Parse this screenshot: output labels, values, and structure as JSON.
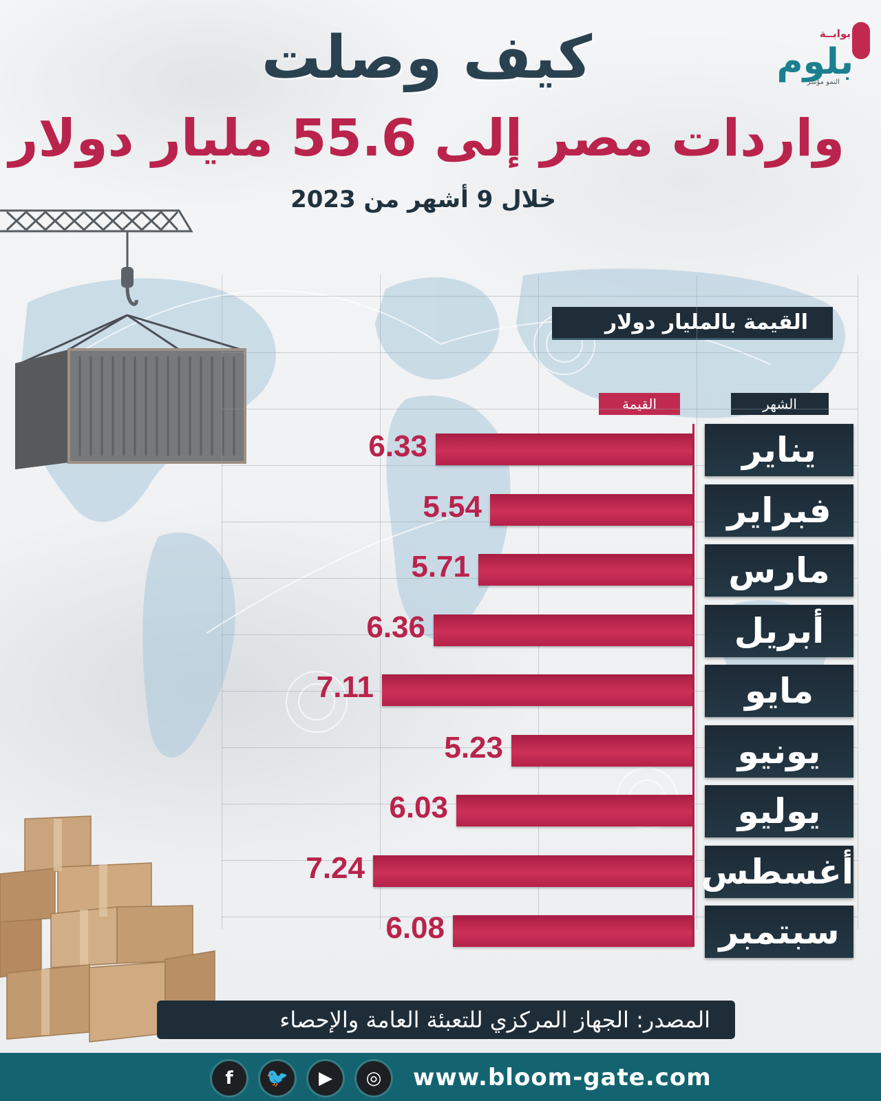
{
  "header": {
    "title_line1": "كيف وصلت",
    "title_line2": "واردات مصر إلى 55.6 مليار دولار",
    "subtitle": "خلال 9 أشهر  من 2023"
  },
  "logo": {
    "top": "بوابــة",
    "main": "بلوم",
    "sub": "النمو مؤشر"
  },
  "chart_data": {
    "type": "bar",
    "orientation": "horizontal",
    "unit_label": "القيمة بالمليار دولار",
    "column_headers": {
      "month": "الشهر",
      "value": "القيمة"
    },
    "categories": [
      "يناير",
      "فبراير",
      "مارس",
      "أبريل",
      "مايو",
      "يونيو",
      "يوليو",
      "أغسطس",
      "سبتمبر"
    ],
    "values": [
      6.33,
      5.54,
      5.71,
      6.36,
      7.11,
      5.23,
      6.03,
      7.24,
      6.08
    ],
    "value_labels": [
      "6.33",
      "5.54",
      "5.71",
      "6.36",
      "7.11",
      "5.23",
      "6.03",
      "7.24",
      "6.08"
    ],
    "bar_color": "#c02a50",
    "month_cell_color": "#1f2d38",
    "grid": true
  },
  "source": "المصدر: الجهاز المركزي للتعبئة العامة والإحصاء",
  "footer": {
    "website": "www.bloom-gate.com",
    "social": [
      {
        "icon": "facebook-icon",
        "glyph": "f"
      },
      {
        "icon": "twitter-icon",
        "glyph": "🐦"
      },
      {
        "icon": "youtube-icon",
        "glyph": "▶"
      },
      {
        "icon": "instagram-icon",
        "glyph": "◎"
      }
    ],
    "color": "#136470"
  }
}
